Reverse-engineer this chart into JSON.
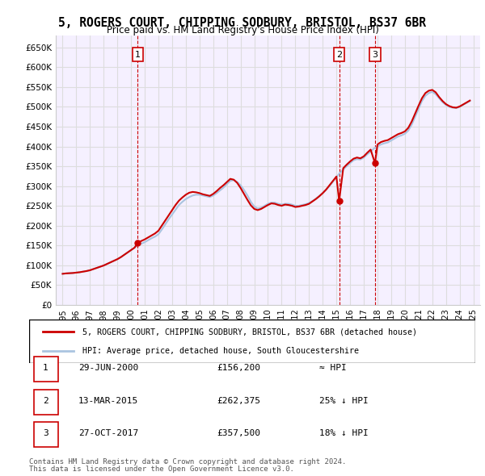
{
  "title": "5, ROGERS COURT, CHIPPING SODBURY, BRISTOL, BS37 6BR",
  "subtitle": "Price paid vs. HM Land Registry's House Price Index (HPI)",
  "title_fontsize": 11,
  "subtitle_fontsize": 9.5,
  "ylabel_ticks": [
    "£0",
    "£50K",
    "£100K",
    "£150K",
    "£200K",
    "£250K",
    "£300K",
    "£350K",
    "£400K",
    "£450K",
    "£500K",
    "£550K",
    "£600K",
    "£650K"
  ],
  "ytick_values": [
    0,
    50000,
    100000,
    150000,
    200000,
    250000,
    300000,
    350000,
    400000,
    450000,
    500000,
    550000,
    600000,
    650000
  ],
  "ylim": [
    0,
    680000
  ],
  "xlim_min": 1994.5,
  "xlim_max": 2025.5,
  "xtick_years": [
    1995,
    1996,
    1997,
    1998,
    1999,
    2000,
    2001,
    2002,
    2003,
    2004,
    2005,
    2006,
    2007,
    2008,
    2009,
    2010,
    2011,
    2012,
    2013,
    2014,
    2015,
    2016,
    2017,
    2018,
    2019,
    2020,
    2021,
    2022,
    2023,
    2024,
    2025
  ],
  "hpi_color": "#aac4e0",
  "price_color": "#cc0000",
  "vline_color": "#cc0000",
  "grid_color": "#dddddd",
  "background_color": "#f5f0ff",
  "legend_label_price": "5, ROGERS COURT, CHIPPING SODBURY, BRISTOL, BS37 6BR (detached house)",
  "legend_label_hpi": "HPI: Average price, detached house, South Gloucestershire",
  "transactions": [
    {
      "num": 1,
      "date": "29-JUN-2000",
      "price": 156200,
      "hpi_note": "≈ HPI",
      "x": 2000.49
    },
    {
      "num": 2,
      "date": "13-MAR-2015",
      "price": 262375,
      "hpi_note": "25% ↓ HPI",
      "x": 2015.2
    },
    {
      "num": 3,
      "date": "27-OCT-2017",
      "price": 357500,
      "hpi_note": "18% ↓ HPI",
      "x": 2017.82
    }
  ],
  "footer_line1": "Contains HM Land Registry data © Crown copyright and database right 2024.",
  "footer_line2": "This data is licensed under the Open Government Licence v3.0.",
  "hpi_data_x": [
    1995.0,
    1995.25,
    1995.5,
    1995.75,
    1996.0,
    1996.25,
    1996.5,
    1996.75,
    1997.0,
    1997.25,
    1997.5,
    1997.75,
    1998.0,
    1998.25,
    1998.5,
    1998.75,
    1999.0,
    1999.25,
    1999.5,
    1999.75,
    2000.0,
    2000.25,
    2000.5,
    2000.75,
    2001.0,
    2001.25,
    2001.5,
    2001.75,
    2002.0,
    2002.25,
    2002.5,
    2002.75,
    2003.0,
    2003.25,
    2003.5,
    2003.75,
    2004.0,
    2004.25,
    2004.5,
    2004.75,
    2005.0,
    2005.25,
    2005.5,
    2005.75,
    2006.0,
    2006.25,
    2006.5,
    2006.75,
    2007.0,
    2007.25,
    2007.5,
    2007.75,
    2008.0,
    2008.25,
    2008.5,
    2008.75,
    2009.0,
    2009.25,
    2009.5,
    2009.75,
    2010.0,
    2010.25,
    2010.5,
    2010.75,
    2011.0,
    2011.25,
    2011.5,
    2011.75,
    2012.0,
    2012.25,
    2012.5,
    2012.75,
    2013.0,
    2013.25,
    2013.5,
    2013.75,
    2014.0,
    2014.25,
    2014.5,
    2014.75,
    2015.0,
    2015.25,
    2015.5,
    2015.75,
    2016.0,
    2016.25,
    2016.5,
    2016.75,
    2017.0,
    2017.25,
    2017.5,
    2017.75,
    2018.0,
    2018.25,
    2018.5,
    2018.75,
    2019.0,
    2019.25,
    2019.5,
    2019.75,
    2020.0,
    2020.25,
    2020.5,
    2020.75,
    2021.0,
    2021.25,
    2021.5,
    2021.75,
    2022.0,
    2022.25,
    2022.5,
    2022.75,
    2023.0,
    2023.25,
    2023.5,
    2023.75,
    2024.0,
    2024.25,
    2024.5,
    2024.75
  ],
  "hpi_data_y": [
    78000,
    79000,
    79500,
    80000,
    81000,
    82000,
    83500,
    85000,
    87000,
    90000,
    93000,
    96000,
    99000,
    103000,
    107000,
    111000,
    115000,
    120000,
    126000,
    132000,
    138000,
    144000,
    150000,
    154000,
    158000,
    163000,
    168000,
    172000,
    178000,
    190000,
    203000,
    216000,
    228000,
    240000,
    252000,
    260000,
    267000,
    272000,
    276000,
    278000,
    278000,
    276000,
    274000,
    272000,
    276000,
    282000,
    289000,
    296000,
    305000,
    313000,
    315000,
    310000,
    302000,
    290000,
    276000,
    260000,
    248000,
    243000,
    245000,
    250000,
    255000,
    258000,
    258000,
    255000,
    253000,
    255000,
    255000,
    253000,
    250000,
    250000,
    252000,
    254000,
    257000,
    262000,
    268000,
    275000,
    282000,
    291000,
    300000,
    311000,
    322000,
    333000,
    342000,
    350000,
    358000,
    365000,
    368000,
    367000,
    372000,
    380000,
    387000,
    395000,
    400000,
    405000,
    408000,
    410000,
    415000,
    420000,
    425000,
    428000,
    432000,
    440000,
    455000,
    475000,
    495000,
    515000,
    528000,
    535000,
    538000,
    532000,
    522000,
    512000,
    505000,
    500000,
    498000,
    497000,
    500000,
    505000,
    510000,
    515000
  ],
  "price_data_x": [
    1995.0,
    1995.25,
    1995.5,
    1995.75,
    1996.0,
    1996.25,
    1996.5,
    1996.75,
    1997.0,
    1997.25,
    1997.5,
    1997.75,
    1998.0,
    1998.25,
    1998.5,
    1998.75,
    1999.0,
    1999.25,
    1999.5,
    1999.75,
    2000.0,
    2000.25,
    2000.49,
    2000.75,
    2001.0,
    2001.25,
    2001.5,
    2001.75,
    2002.0,
    2002.25,
    2002.5,
    2002.75,
    2003.0,
    2003.25,
    2003.5,
    2003.75,
    2004.0,
    2004.25,
    2004.5,
    2004.75,
    2005.0,
    2005.25,
    2005.5,
    2005.75,
    2006.0,
    2006.25,
    2006.5,
    2006.75,
    2007.0,
    2007.25,
    2007.5,
    2007.75,
    2008.0,
    2008.25,
    2008.5,
    2008.75,
    2009.0,
    2009.25,
    2009.5,
    2009.75,
    2010.0,
    2010.25,
    2010.5,
    2010.75,
    2011.0,
    2011.25,
    2011.5,
    2011.75,
    2012.0,
    2012.25,
    2012.5,
    2012.75,
    2013.0,
    2013.25,
    2013.5,
    2013.75,
    2014.0,
    2014.25,
    2014.5,
    2014.75,
    2015.0,
    2015.2,
    2015.5,
    2015.75,
    2016.0,
    2016.25,
    2016.5,
    2016.75,
    2017.0,
    2017.25,
    2017.5,
    2017.82,
    2018.0,
    2018.25,
    2018.5,
    2018.75,
    2019.0,
    2019.25,
    2019.5,
    2019.75,
    2020.0,
    2020.25,
    2020.5,
    2020.75,
    2021.0,
    2021.25,
    2021.5,
    2021.75,
    2022.0,
    2022.25,
    2022.5,
    2022.75,
    2023.0,
    2023.25,
    2023.5,
    2023.75,
    2024.0,
    2024.25,
    2024.5,
    2024.75
  ],
  "price_data_y": [
    78000,
    79000,
    79500,
    80000,
    81000,
    82000,
    83500,
    85000,
    87000,
    90000,
    93000,
    96000,
    99000,
    103000,
    107000,
    111000,
    115000,
    120000,
    126000,
    132000,
    138000,
    144000,
    156200,
    161000,
    165000,
    170000,
    175000,
    180000,
    187000,
    200000,
    213000,
    226000,
    239000,
    252000,
    263000,
    271000,
    278000,
    283000,
    285000,
    284000,
    282000,
    279000,
    277000,
    275000,
    280000,
    287000,
    295000,
    302000,
    310000,
    318000,
    316000,
    308000,
    295000,
    280000,
    265000,
    251000,
    242000,
    239000,
    242000,
    247000,
    252000,
    256000,
    255000,
    252000,
    250000,
    253000,
    252000,
    250000,
    247000,
    248000,
    250000,
    252000,
    255000,
    261000,
    267000,
    274000,
    282000,
    291000,
    302000,
    313000,
    324000,
    262375,
    345000,
    354000,
    362000,
    369000,
    372000,
    370000,
    375000,
    384000,
    392000,
    357500,
    405000,
    411000,
    414000,
    416000,
    421000,
    426000,
    431000,
    434000,
    438000,
    447000,
    463000,
    483000,
    503000,
    522000,
    535000,
    541000,
    543000,
    537000,
    525000,
    515000,
    507000,
    502000,
    499000,
    498000,
    501000,
    506000,
    511000,
    516000
  ]
}
